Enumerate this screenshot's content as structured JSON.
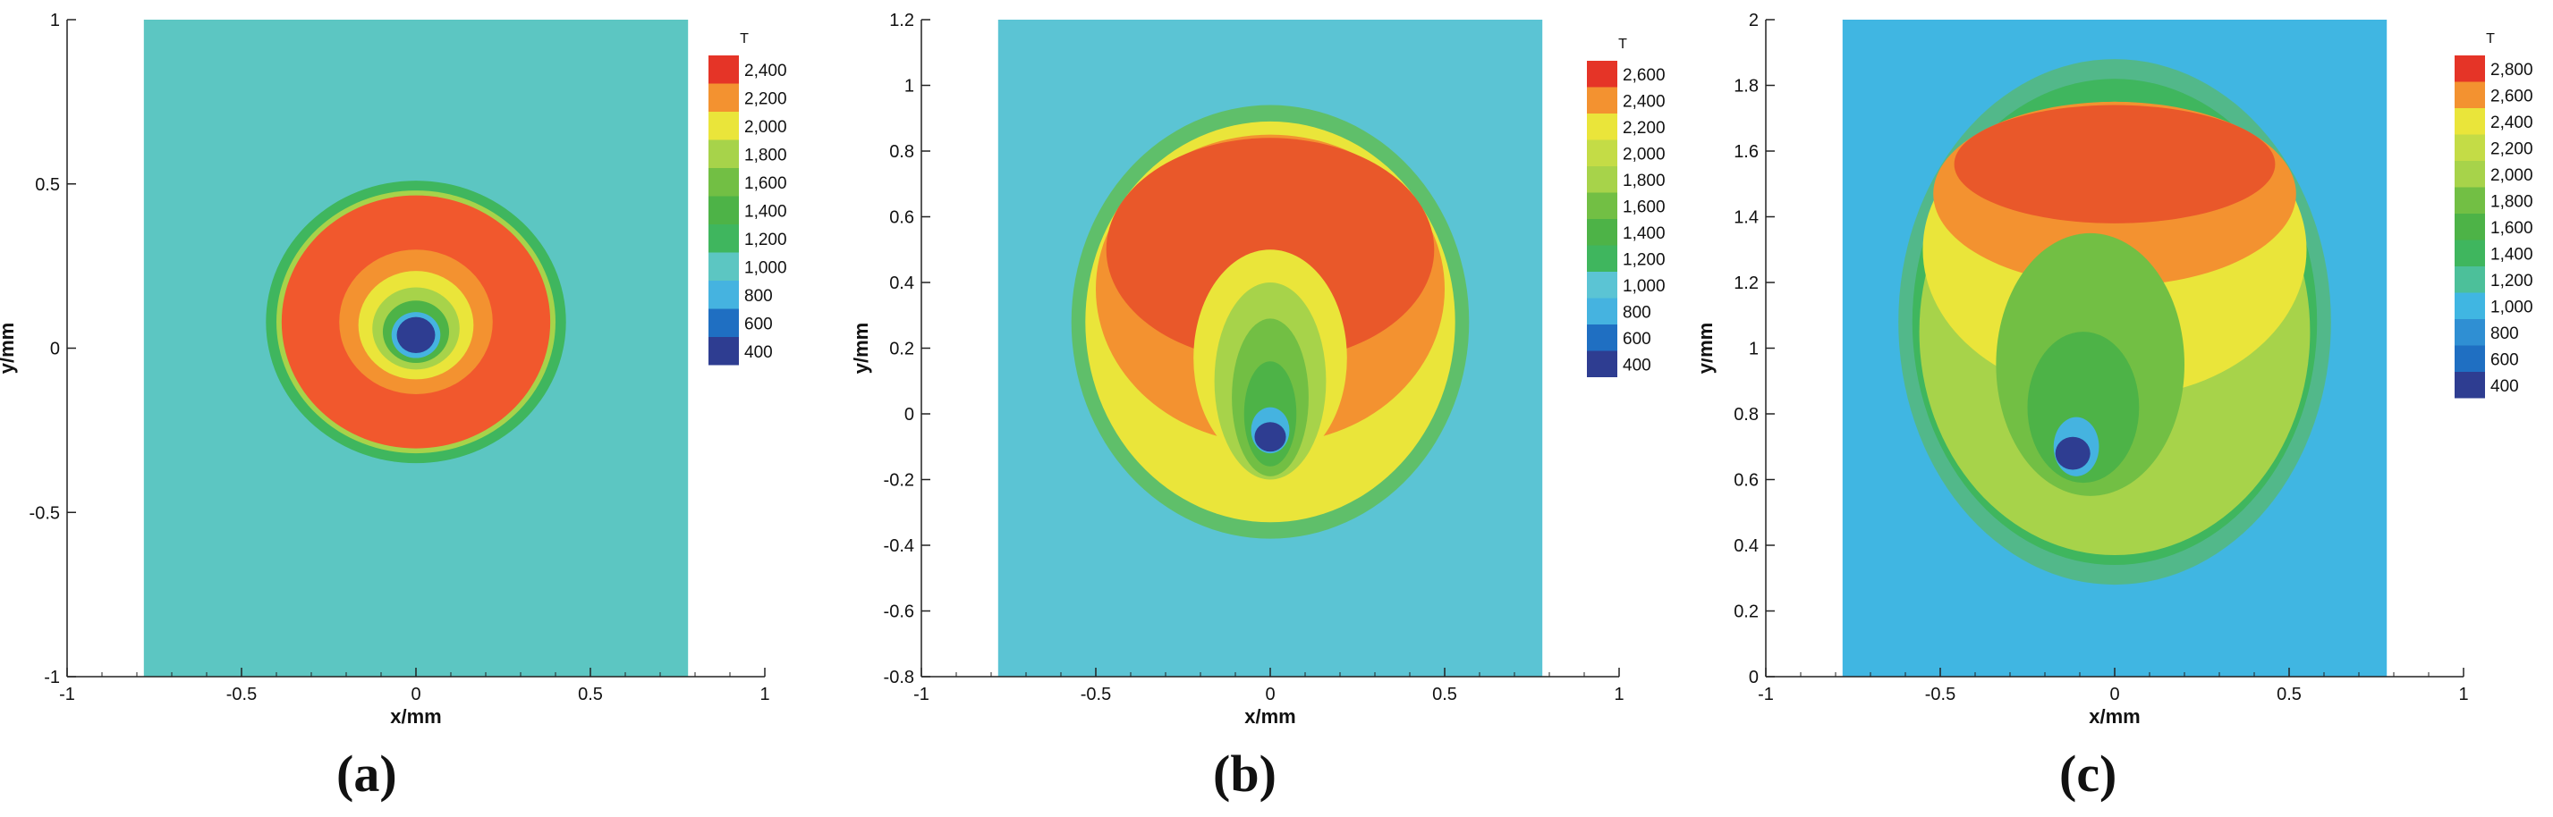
{
  "chart_data": [
    {
      "type": "heatmap",
      "panel_label": "(a)",
      "xlabel": "x/mm",
      "ylabel": "y/mm",
      "xlim": [
        -1,
        1
      ],
      "ylim": [
        -1,
        1
      ],
      "x_ticks": [
        "-1",
        "-0.5",
        "0",
        "0.5",
        "1"
      ],
      "y_ticks": [
        "-1",
        "-0.5",
        "0",
        "0.5",
        "1"
      ],
      "x_tick_values": [
        -1,
        -0.5,
        0,
        0.5,
        1
      ],
      "y_tick_values": [
        -1,
        -0.5,
        0,
        0.5,
        1
      ],
      "domain_x": [
        -0.78,
        0.78
      ],
      "domain_y": [
        -1,
        1
      ],
      "background_color": "#5cc6c2",
      "legend_title": "T",
      "legend": [
        {
          "label": "2,400",
          "color": "#e53427"
        },
        {
          "label": "2,200",
          "color": "#f39230"
        },
        {
          "label": "2,000",
          "color": "#eae53a"
        },
        {
          "label": "1,800",
          "color": "#a7d34a"
        },
        {
          "label": "1,600",
          "color": "#72bf44"
        },
        {
          "label": "1,400",
          "color": "#4db347"
        },
        {
          "label": "1,200",
          "color": "#3fb65e"
        },
        {
          "label": "1,000",
          "color": "#5cc6c2"
        },
        {
          "label": "800",
          "color": "#45b3e0"
        },
        {
          "label": "600",
          "color": "#1f6fc2"
        },
        {
          "label": "400",
          "color": "#2e3d91"
        }
      ],
      "contours": [
        {
          "cx": 0,
          "cy": 0.08,
          "rx": 0.43,
          "ry": 0.43,
          "color": "#3fb65e"
        },
        {
          "cx": 0,
          "cy": 0.08,
          "rx": 0.4,
          "ry": 0.4,
          "color": "#a7d34a"
        },
        {
          "cx": 0,
          "cy": 0.08,
          "rx": 0.385,
          "ry": 0.385,
          "color": "#f1582d"
        },
        {
          "cx": 0,
          "cy": 0.08,
          "rx": 0.22,
          "ry": 0.22,
          "color": "#f39230"
        },
        {
          "cx": 0,
          "cy": 0.07,
          "rx": 0.165,
          "ry": 0.165,
          "color": "#eae53a"
        },
        {
          "cx": 0,
          "cy": 0.06,
          "rx": 0.125,
          "ry": 0.125,
          "color": "#a7d34a"
        },
        {
          "cx": 0,
          "cy": 0.05,
          "rx": 0.095,
          "ry": 0.095,
          "color": "#4db347"
        },
        {
          "cx": 0,
          "cy": 0.04,
          "rx": 0.07,
          "ry": 0.07,
          "color": "#45b3e0"
        },
        {
          "cx": 0,
          "cy": 0.04,
          "rx": 0.055,
          "ry": 0.055,
          "color": "#2e3d91"
        }
      ]
    },
    {
      "type": "heatmap",
      "panel_label": "(b)",
      "xlabel": "x/mm",
      "ylabel": "y/mm",
      "xlim": [
        -1,
        1
      ],
      "ylim": [
        -0.8,
        1.2
      ],
      "x_ticks": [
        "-1",
        "-0.5",
        "0",
        "0.5",
        "1"
      ],
      "y_ticks": [
        "-0.8",
        "-0.6",
        "-0.4",
        "-0.2",
        "0",
        "0.2",
        "0.4",
        "0.6",
        "0.8",
        "1",
        "1.2"
      ],
      "x_tick_values": [
        -1,
        -0.5,
        0,
        0.5,
        1
      ],
      "y_tick_values": [
        -0.8,
        -0.6,
        -0.4,
        -0.2,
        0,
        0.2,
        0.4,
        0.6,
        0.8,
        1,
        1.2
      ],
      "domain_x": [
        -0.78,
        0.78
      ],
      "domain_y": [
        -0.8,
        1.2
      ],
      "background_color": "#5bc4d4",
      "legend_title": "T",
      "legend": [
        {
          "label": "2,600",
          "color": "#e53427"
        },
        {
          "label": "2,400",
          "color": "#f39230"
        },
        {
          "label": "2,200",
          "color": "#eae53a"
        },
        {
          "label": "2,000",
          "color": "#c4dc46"
        },
        {
          "label": "1,800",
          "color": "#a7d34a"
        },
        {
          "label": "1,600",
          "color": "#72bf44"
        },
        {
          "label": "1,400",
          "color": "#4db347"
        },
        {
          "label": "1,200",
          "color": "#3fb65e"
        },
        {
          "label": "1,000",
          "color": "#5bc4d4"
        },
        {
          "label": "800",
          "color": "#45b3e0"
        },
        {
          "label": "600",
          "color": "#1f6fc2"
        },
        {
          "label": "400",
          "color": "#2e3d91"
        }
      ],
      "contours": [
        {
          "cx": 0,
          "cy": 0.28,
          "rx": 0.57,
          "ry": 0.66,
          "color": "#5fbf6a"
        },
        {
          "cx": 0,
          "cy": 0.28,
          "rx": 0.53,
          "ry": 0.61,
          "color": "#eae53a"
        },
        {
          "cx": 0,
          "cy": 0.38,
          "rx": 0.5,
          "ry": 0.47,
          "color": "#f39230"
        },
        {
          "cx": 0,
          "cy": 0.5,
          "rx": 0.47,
          "ry": 0.34,
          "color": "#e9582a"
        },
        {
          "cx": 0,
          "cy": 0.17,
          "rx": 0.22,
          "ry": 0.33,
          "color": "#eae53a"
        },
        {
          "cx": 0,
          "cy": 0.1,
          "rx": 0.16,
          "ry": 0.3,
          "color": "#a7d34a"
        },
        {
          "cx": 0,
          "cy": 0.05,
          "rx": 0.11,
          "ry": 0.24,
          "color": "#72bf44"
        },
        {
          "cx": 0,
          "cy": 0.0,
          "rx": 0.075,
          "ry": 0.16,
          "color": "#4db347"
        },
        {
          "cx": 0,
          "cy": -0.05,
          "rx": 0.055,
          "ry": 0.07,
          "color": "#45b3e0"
        },
        {
          "cx": 0,
          "cy": -0.07,
          "rx": 0.045,
          "ry": 0.045,
          "color": "#2e3d91"
        }
      ]
    },
    {
      "type": "heatmap",
      "panel_label": "(c)",
      "xlabel": "x/mm",
      "ylabel": "y/mm",
      "xlim": [
        -1,
        1
      ],
      "ylim": [
        0,
        2
      ],
      "x_ticks": [
        "-1",
        "-0.5",
        "0",
        "0.5",
        "1"
      ],
      "y_ticks": [
        "0",
        "0.2",
        "0.4",
        "0.6",
        "0.8",
        "1",
        "1.2",
        "1.4",
        "1.6",
        "1.8",
        "2"
      ],
      "x_tick_values": [
        -1,
        -0.5,
        0,
        0.5,
        1
      ],
      "y_tick_values": [
        0,
        0.2,
        0.4,
        0.6,
        0.8,
        1,
        1.2,
        1.4,
        1.6,
        1.8,
        2
      ],
      "domain_x": [
        -0.78,
        0.78
      ],
      "domain_y": [
        0,
        2
      ],
      "background_color": "#40b6e2",
      "legend_title": "T",
      "legend": [
        {
          "label": "2,800",
          "color": "#e53427"
        },
        {
          "label": "2,600",
          "color": "#f39230"
        },
        {
          "label": "2,400",
          "color": "#eae53a"
        },
        {
          "label": "2,200",
          "color": "#c4dc46"
        },
        {
          "label": "2,000",
          "color": "#a7d34a"
        },
        {
          "label": "1,800",
          "color": "#72bf44"
        },
        {
          "label": "1,600",
          "color": "#4db347"
        },
        {
          "label": "1,400",
          "color": "#3fb65e"
        },
        {
          "label": "1,200",
          "color": "#4cc09a"
        },
        {
          "label": "1,000",
          "color": "#40b6e2"
        },
        {
          "label": "800",
          "color": "#2f8fd3"
        },
        {
          "label": "600",
          "color": "#1f6fc2"
        },
        {
          "label": "400",
          "color": "#2e3d91"
        }
      ],
      "contours": [
        {
          "cx": 0,
          "cy": 1.08,
          "rx": 0.62,
          "ry": 0.8,
          "color": "#52b88a"
        },
        {
          "cx": 0,
          "cy": 1.08,
          "rx": 0.58,
          "ry": 0.74,
          "color": "#3fb65e"
        },
        {
          "cx": 0,
          "cy": 1.05,
          "rx": 0.56,
          "ry": 0.68,
          "color": "#a7d34a"
        },
        {
          "cx": 0,
          "cy": 1.3,
          "rx": 0.55,
          "ry": 0.45,
          "color": "#eae53a"
        },
        {
          "cx": 0,
          "cy": 1.47,
          "rx": 0.52,
          "ry": 0.28,
          "color": "#f39230"
        },
        {
          "cx": 0,
          "cy": 1.56,
          "rx": 0.46,
          "ry": 0.18,
          "color": "#e9582a"
        },
        {
          "cx": -0.07,
          "cy": 0.95,
          "rx": 0.27,
          "ry": 0.4,
          "color": "#72bf44"
        },
        {
          "cx": -0.09,
          "cy": 0.82,
          "rx": 0.16,
          "ry": 0.23,
          "color": "#4db347"
        },
        {
          "cx": -0.11,
          "cy": 0.7,
          "rx": 0.065,
          "ry": 0.09,
          "color": "#45b3e0"
        },
        {
          "cx": -0.12,
          "cy": 0.68,
          "rx": 0.05,
          "ry": 0.05,
          "color": "#2e3d91"
        }
      ]
    }
  ]
}
